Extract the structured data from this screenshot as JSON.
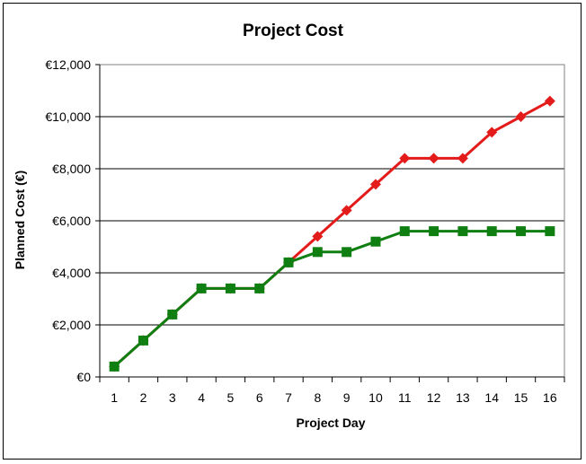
{
  "chart_data": {
    "type": "line",
    "title": "Project Cost",
    "xlabel": "Project Day",
    "ylabel": "Planned Cost (€)",
    "categories": [
      "1",
      "2",
      "3",
      "4",
      "5",
      "6",
      "7",
      "8",
      "9",
      "10",
      "11",
      "12",
      "13",
      "14",
      "15",
      "16"
    ],
    "y_tick_labels": [
      "€0",
      "€2,000",
      "€4,000",
      "€6,000",
      "€8,000",
      "€10,000",
      "€12,000"
    ],
    "y_ticks": [
      0,
      2000,
      4000,
      6000,
      8000,
      10000,
      12000
    ],
    "ylim": [
      0,
      12000
    ],
    "grid": "horizontal",
    "series": [
      {
        "color": "#e31b1b",
        "marker": "diamond",
        "values": [
          400,
          1400,
          2400,
          3400,
          3400,
          3400,
          4400,
          5400,
          6400,
          7400,
          8400,
          8400,
          8400,
          9400,
          10000,
          10600
        ]
      },
      {
        "color": "#0f7f12",
        "marker": "square",
        "values": [
          400,
          1400,
          2400,
          3400,
          3400,
          3400,
          4400,
          4800,
          4800,
          5200,
          5600,
          5600,
          5600,
          5600,
          5600,
          5600
        ]
      }
    ]
  }
}
